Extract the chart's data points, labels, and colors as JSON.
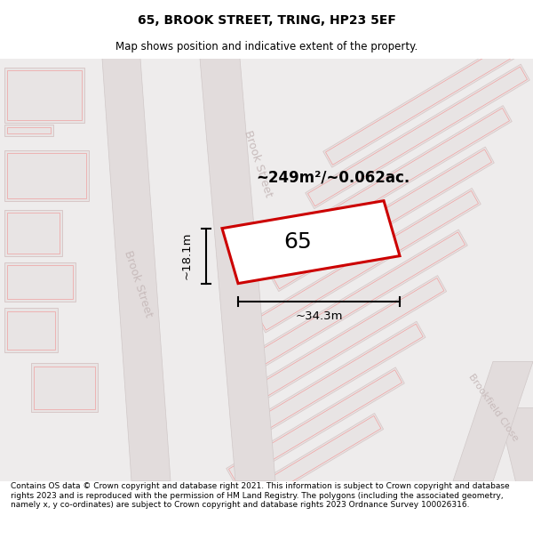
{
  "title": "65, BROOK STREET, TRING, HP23 5EF",
  "subtitle": "Map shows position and indicative extent of the property.",
  "footer": "Contains OS data © Crown copyright and database right 2021. This information is subject to Crown copyright and database rights 2023 and is reproduced with the permission of HM Land Registry. The polygons (including the associated geometry, namely x, y co-ordinates) are subject to Crown copyright and database rights 2023 Ordnance Survey 100026316.",
  "area_label": "~249m²/~0.062ac.",
  "property_number": "65",
  "dim_width": "~34.3m",
  "dim_height": "~18.1m",
  "street_label_upper": "Brook Street",
  "street_label_lower": "Brook Street",
  "street_label_brookfield": "Brookfield Close",
  "highlight_color": "#cc0000",
  "map_bg": "#eeecec",
  "road_fill": "#e2dcdc",
  "building_fill": "#e8e4e4",
  "building_edge": "#d8c8c8",
  "road_edge": "#d0c8c8",
  "plot_fill": "#ffffff",
  "plot_edge_faint": "#f0a0a0",
  "title_fontsize": 10,
  "subtitle_fontsize": 8.5,
  "footer_fontsize": 6.5
}
